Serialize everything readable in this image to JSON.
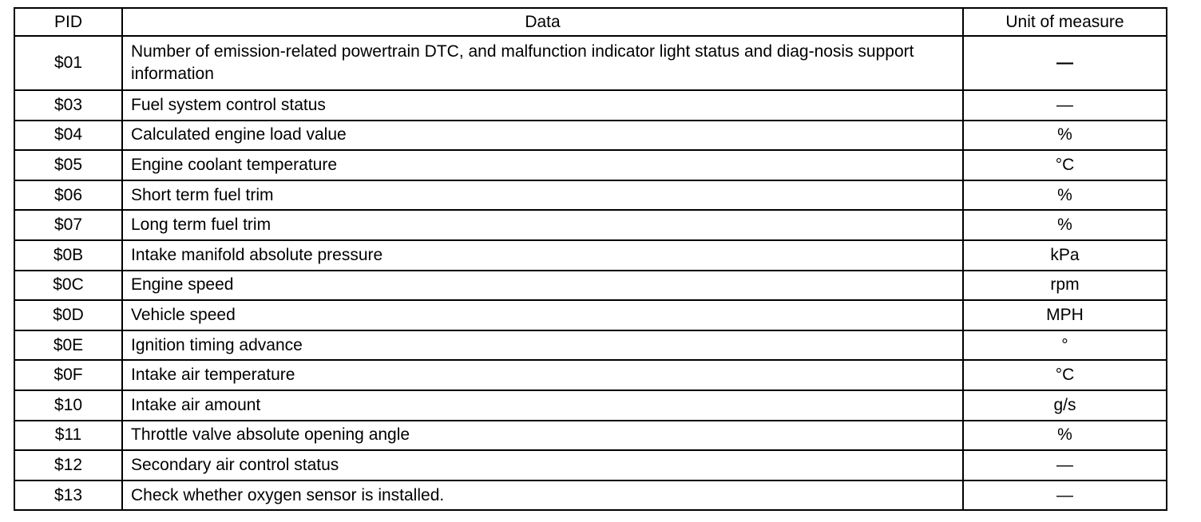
{
  "table": {
    "headers": [
      "PID",
      "Data",
      "Unit of measure"
    ],
    "rows": [
      {
        "pid": "$01",
        "data": "Number of emission-related powertrain DTC, and malfunction indicator light status and diag-nosis support information",
        "unit": "—"
      },
      {
        "pid": "$03",
        "data": "Fuel system control status",
        "unit": "—"
      },
      {
        "pid": "$04",
        "data": "Calculated engine load value",
        "unit": "%"
      },
      {
        "pid": "$05",
        "data": "Engine coolant temperature",
        "unit": "°C"
      },
      {
        "pid": "$06",
        "data": "Short term fuel trim",
        "unit": "%"
      },
      {
        "pid": "$07",
        "data": "Long term fuel trim",
        "unit": "%"
      },
      {
        "pid": "$0B",
        "data": "Intake manifold absolute pressure",
        "unit": "kPa"
      },
      {
        "pid": "$0C",
        "data": "Engine speed",
        "unit": "rpm"
      },
      {
        "pid": "$0D",
        "data": "Vehicle speed",
        "unit": "MPH"
      },
      {
        "pid": "$0E",
        "data": "Ignition timing advance",
        "unit": "°"
      },
      {
        "pid": "$0F",
        "data": "Intake air temperature",
        "unit": "°C"
      },
      {
        "pid": "$10",
        "data": "Intake air amount",
        "unit": "g/s"
      },
      {
        "pid": "$11",
        "data": "Throttle valve absolute opening angle",
        "unit": "%"
      },
      {
        "pid": "$12",
        "data": "Secondary air control status",
        "unit": "—"
      },
      {
        "pid": "$13",
        "data": "Check whether oxygen sensor is installed.",
        "unit": "—"
      }
    ]
  }
}
